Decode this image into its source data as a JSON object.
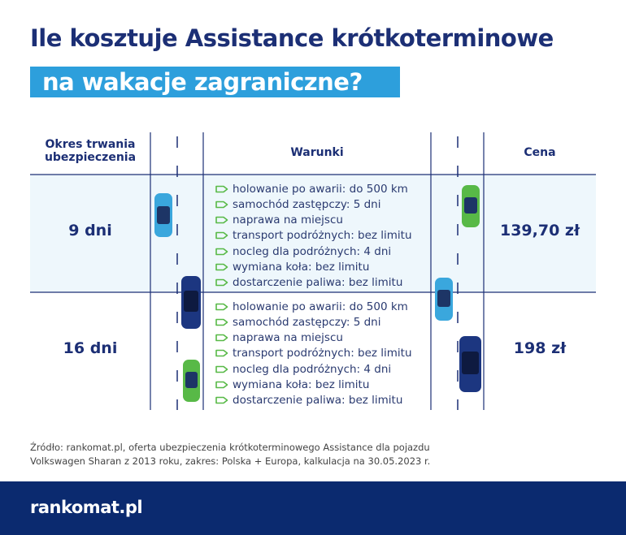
{
  "header": {
    "title_line1": "Ile kosztuje Assistance krótkoterminowe",
    "title_line2": "na wakacje zagraniczne?"
  },
  "table": {
    "headers": [
      "Okres trwania ubezpieczenia",
      "Warunki",
      "Cena"
    ],
    "rows": [
      {
        "period": "9 dni",
        "conditions": [
          "holowanie po awarii: do 500 km",
          "samochód zastępczy: 5 dni",
          "naprawa na miejscu",
          "transport podróżnych: bez limitu",
          "nocleg dla podróżnych: 4 dni",
          "wymiana koła: bez limitu",
          "dostarczenie paliwa: bez limitu"
        ],
        "price": "139,70 zł"
      },
      {
        "period": "16 dni",
        "conditions": [
          "holowanie po awarii: do 500 km",
          "samochód zastępczy: 5 dni",
          "naprawa na miejscu",
          "transport podróżnych: bez limitu",
          "nocleg dla podróżnych: 4 dni",
          "wymiana koła: bez limitu",
          "dostarczenie paliwa: bez limitu"
        ],
        "price": "198 zł"
      }
    ]
  },
  "source": [
    "Źródło: rankomat.pl, oferta ubezpieczenia krótkoterminowego Assistance dla pojazdu",
    "Volkswagen Sharan z 2013 roku, zakres: Polska + Europa, kalkulacja na 30.05.2023 r."
  ],
  "footer": {
    "logo": "rankomat.pl"
  }
}
